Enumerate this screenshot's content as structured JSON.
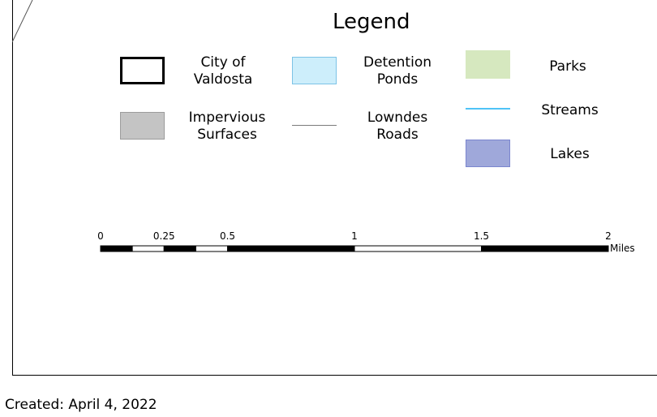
{
  "legend": {
    "title": "Legend",
    "items": [
      {
        "label_line1": "City of",
        "label_line2": "Valdosta",
        "symbol": "outline-box",
        "stroke": "#000000"
      },
      {
        "label_line1": "Detention",
        "label_line2": "Ponds",
        "symbol": "fill-box",
        "fill": "#cdeefb",
        "stroke": "#7cc3e6"
      },
      {
        "label_line1": "Parks",
        "label_line2": "",
        "symbol": "fill-box",
        "fill": "#d6e8bf"
      },
      {
        "label_line1": "Impervious",
        "label_line2": "Surfaces",
        "symbol": "fill-box",
        "fill": "#c4c4c4",
        "stroke": "#9c9c9c"
      },
      {
        "label_line1": "Lowndes",
        "label_line2": "Roads",
        "symbol": "line",
        "stroke": "#7a7a7a"
      },
      {
        "label_line1": "Streams",
        "label_line2": "",
        "symbol": "line",
        "stroke": "#4fc3f7"
      },
      {
        "label_line1": "Lakes",
        "label_line2": "",
        "symbol": "fill-box",
        "fill": "#9fa8da",
        "stroke": "#7b86cf"
      }
    ]
  },
  "scale_bar": {
    "ticks": [
      {
        "label": "0",
        "value": 0
      },
      {
        "label": "0.25",
        "value": 0.25
      },
      {
        "label": "0.5",
        "value": 0.5
      },
      {
        "label": "1",
        "value": 1
      },
      {
        "label": "1.5",
        "value": 1.5
      },
      {
        "label": "2",
        "value": 2
      }
    ],
    "units": "Miles"
  },
  "credit": "Created: April 4, 2022"
}
